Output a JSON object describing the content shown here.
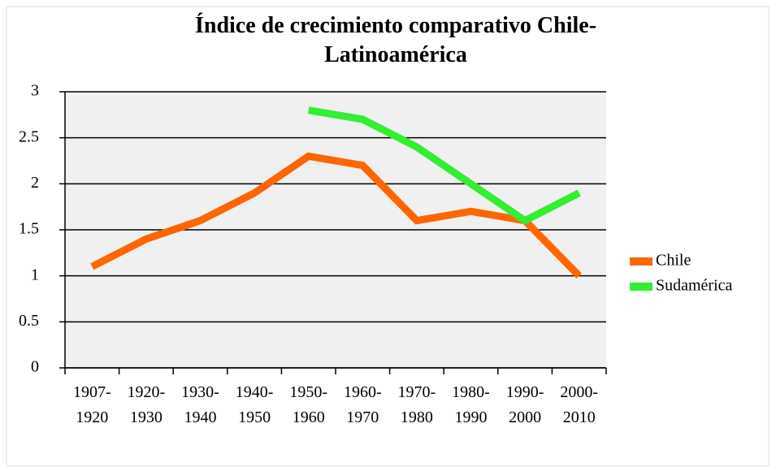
{
  "chart_data": {
    "type": "line",
    "title": "Índice de crecimiento comparativo Chile-Latinoamérica",
    "categories": [
      "1907-1920",
      "1920-1930",
      "1930-1940",
      "1940-1950",
      "1950-1960",
      "1960-1970",
      "1970-1980",
      "1980-1990",
      "1990-2000",
      "2000-2010"
    ],
    "series": [
      {
        "name": "Chile",
        "color": "#ff6600",
        "values": [
          1.1,
          1.4,
          1.6,
          1.9,
          2.3,
          2.2,
          1.6,
          1.7,
          1.6,
          1.0
        ]
      },
      {
        "name": "Sudamérica",
        "color": "#33ee33",
        "values": [
          null,
          null,
          null,
          null,
          2.8,
          2.7,
          2.4,
          2.0,
          1.6,
          1.9
        ]
      }
    ],
    "ylim": [
      0,
      3
    ],
    "yticks": [
      0,
      0.5,
      1,
      1.5,
      2,
      2.5,
      3
    ],
    "grid": true,
    "legend": "right"
  }
}
